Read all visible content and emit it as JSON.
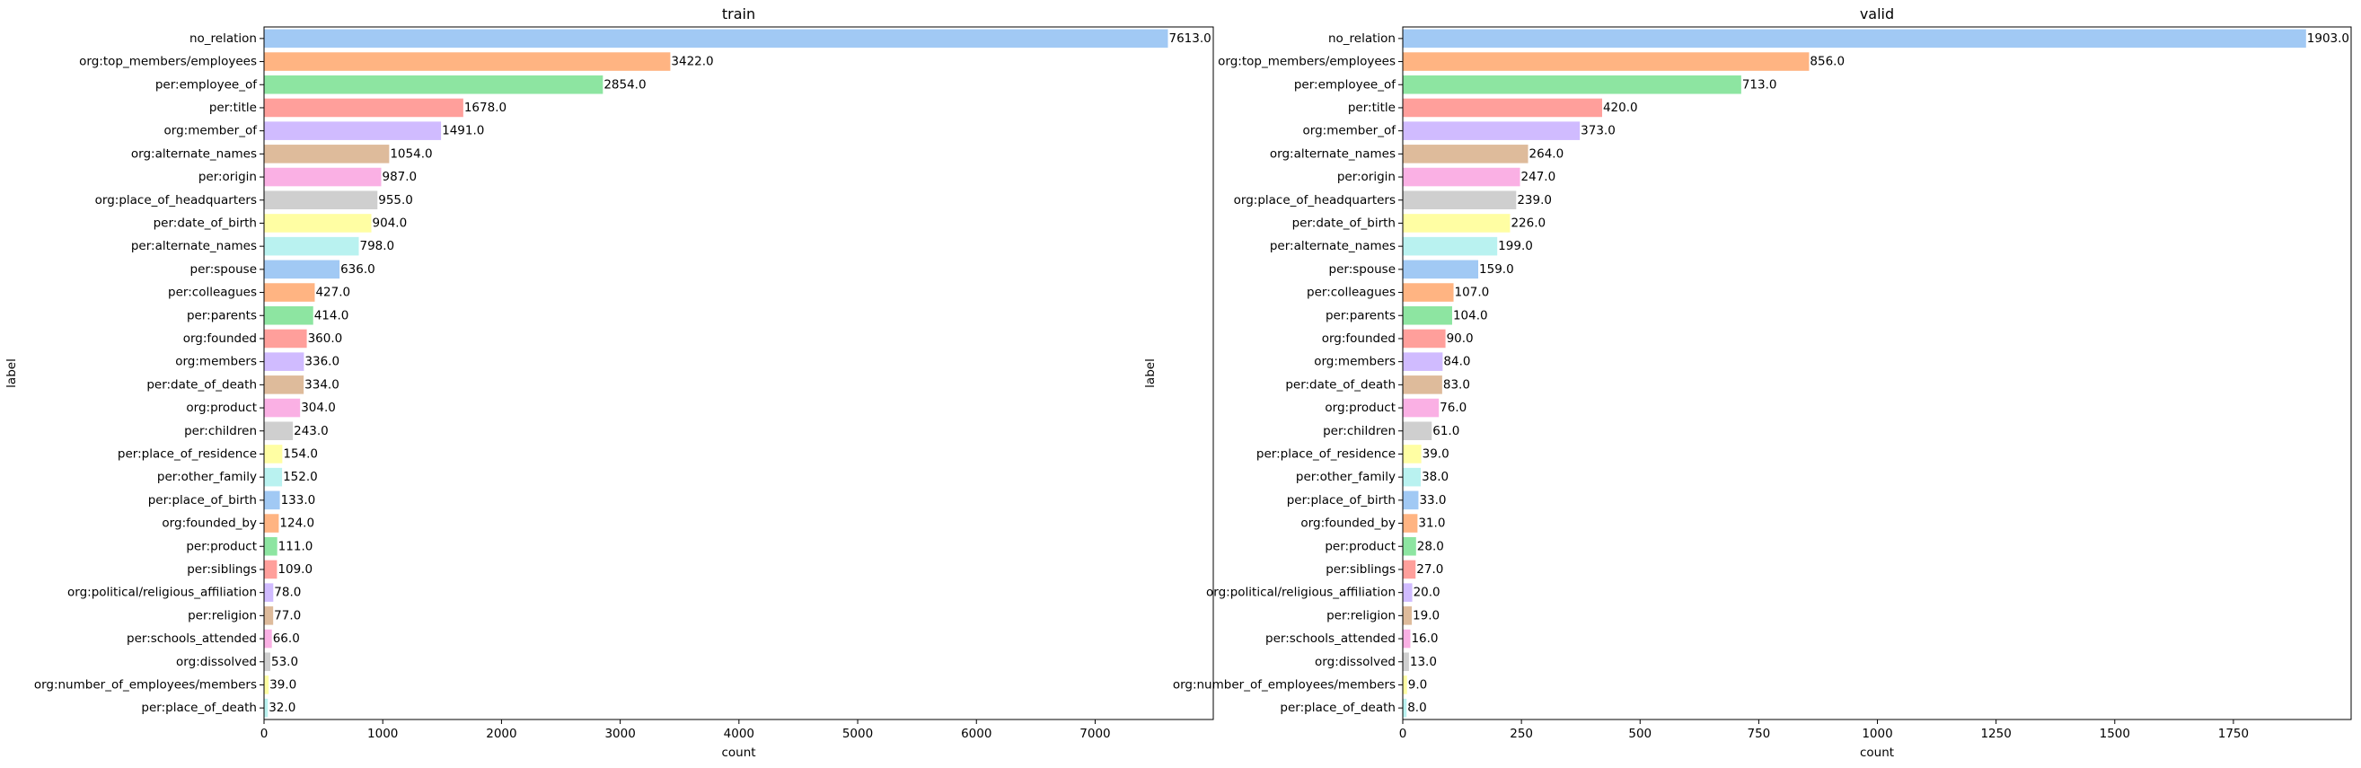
{
  "chart_data": [
    {
      "type": "bar",
      "orientation": "horizontal",
      "title": "train",
      "xlabel": "count",
      "ylabel": "label",
      "xlim": [
        0,
        7995
      ],
      "xticks": [
        0,
        1000,
        2000,
        3000,
        4000,
        5000,
        6000,
        7000
      ],
      "xtick_labels": [
        "0",
        "1000",
        "2000",
        "3000",
        "4000",
        "5000",
        "6000",
        "7000"
      ],
      "categories": [
        "no_relation",
        "org:top_members/employees",
        "per:employee_of",
        "per:title",
        "org:member_of",
        "org:alternate_names",
        "per:origin",
        "org:place_of_headquarters",
        "per:date_of_birth",
        "per:alternate_names",
        "per:spouse",
        "per:colleagues",
        "per:parents",
        "org:founded",
        "org:members",
        "per:date_of_death",
        "org:product",
        "per:children",
        "per:place_of_residence",
        "per:other_family",
        "per:place_of_birth",
        "org:founded_by",
        "per:product",
        "per:siblings",
        "org:political/religious_affiliation",
        "per:religion",
        "per:schools_attended",
        "org:dissolved",
        "org:number_of_employees/members",
        "per:place_of_death"
      ],
      "values": [
        7613,
        3422,
        2854,
        1678,
        1491,
        1054,
        987,
        955,
        904,
        798,
        636,
        427,
        414,
        360,
        336,
        334,
        304,
        243,
        154,
        152,
        133,
        124,
        111,
        109,
        78,
        77,
        66,
        53,
        39,
        32
      ],
      "value_labels": [
        "7613.0",
        "3422.0",
        "2854.0",
        "1678.0",
        "1491.0",
        "1054.0",
        "987.0",
        "955.0",
        "904.0",
        "798.0",
        "636.0",
        "427.0",
        "414.0",
        "360.0",
        "336.0",
        "334.0",
        "304.0",
        "243.0",
        "154.0",
        "152.0",
        "133.0",
        "124.0",
        "111.0",
        "109.0",
        "78.0",
        "77.0",
        "66.0",
        "53.0",
        "39.0",
        "32.0"
      ]
    },
    {
      "type": "bar",
      "orientation": "horizontal",
      "title": "valid",
      "xlabel": "count",
      "ylabel": "label",
      "xlim": [
        0,
        1998
      ],
      "xticks": [
        0,
        250,
        500,
        750,
        1000,
        1250,
        1500,
        1750
      ],
      "xtick_labels": [
        "0",
        "250",
        "500",
        "750",
        "1000",
        "1250",
        "1500",
        "1750"
      ],
      "categories": [
        "no_relation",
        "org:top_members/employees",
        "per:employee_of",
        "per:title",
        "org:member_of",
        "org:alternate_names",
        "per:origin",
        "org:place_of_headquarters",
        "per:date_of_birth",
        "per:alternate_names",
        "per:spouse",
        "per:colleagues",
        "per:parents",
        "org:founded",
        "org:members",
        "per:date_of_death",
        "org:product",
        "per:children",
        "per:place_of_residence",
        "per:other_family",
        "per:place_of_birth",
        "org:founded_by",
        "per:product",
        "per:siblings",
        "org:political/religious_affiliation",
        "per:religion",
        "per:schools_attended",
        "org:dissolved",
        "org:number_of_employees/members",
        "per:place_of_death"
      ],
      "values": [
        1903,
        856,
        713,
        420,
        373,
        264,
        247,
        239,
        226,
        199,
        159,
        107,
        104,
        90,
        84,
        83,
        76,
        61,
        39,
        38,
        33,
        31,
        28,
        27,
        20,
        19,
        16,
        13,
        9,
        8
      ],
      "value_labels": [
        "1903.0",
        "856.0",
        "713.0",
        "420.0",
        "373.0",
        "264.0",
        "247.0",
        "239.0",
        "226.0",
        "199.0",
        "159.0",
        "107.0",
        "104.0",
        "90.0",
        "84.0",
        "83.0",
        "76.0",
        "61.0",
        "39.0",
        "38.0",
        "33.0",
        "31.0",
        "28.0",
        "27.0",
        "20.0",
        "19.0",
        "16.0",
        "13.0",
        "9.0",
        "8.0"
      ]
    }
  ],
  "palette": [
    "#a1c9f4",
    "#ffb482",
    "#8de5a1",
    "#ff9f9b",
    "#d0bbff",
    "#debb9b",
    "#fab0e4",
    "#cfcfcf",
    "#fffea3",
    "#b9f2f0"
  ],
  "axis_color": "#000000"
}
